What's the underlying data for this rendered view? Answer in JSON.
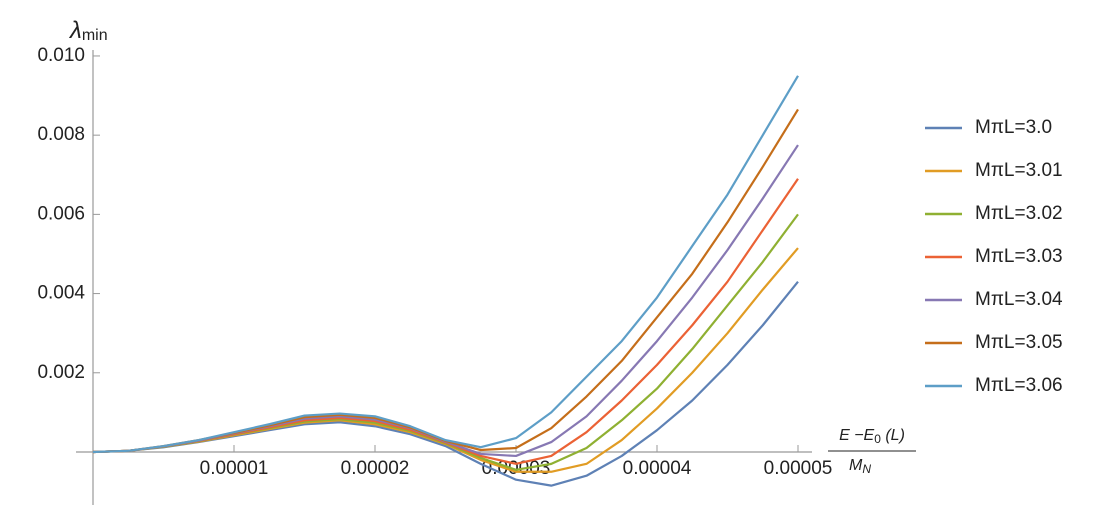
{
  "chart_data": {
    "type": "line",
    "y_label": {
      "main": "λ",
      "sub": "min"
    },
    "x_label": {
      "numerator": "E −E",
      "numerator_sub": "0",
      "numerator_tail": " (L)",
      "denominator": "M",
      "denominator_sub": "N"
    },
    "x": [
      0,
      2.5e-06,
      5e-06,
      7.5e-06,
      1e-05,
      1.25e-05,
      1.5e-05,
      1.75e-05,
      2e-05,
      2.25e-05,
      2.5e-05,
      2.75e-05,
      3e-05,
      3.25e-05,
      3.5e-05,
      3.75e-05,
      4e-05,
      4.25e-05,
      4.5e-05,
      4.75e-05,
      5e-05
    ],
    "xlim": [
      0,
      5e-05
    ],
    "xticks": [
      1e-05,
      2e-05,
      3e-05,
      4e-05,
      5e-05
    ],
    "ylim": [
      -0.0012,
      0.0101
    ],
    "yticks": [
      0.002,
      0.004,
      0.006,
      0.008,
      {
        "value": 0.01,
        "label": "0.010"
      }
    ],
    "series": [
      {
        "name": "MπL=3.0",
        "color": "#5e81b5",
        "values": [
          0,
          3e-05,
          0.00012,
          0.00025,
          0.0004,
          0.00055,
          0.0007,
          0.00075,
          0.00065,
          0.00045,
          0.00015,
          -0.0003,
          -0.0007,
          -0.00085,
          -0.0006,
          -0.0001,
          0.00055,
          0.0013,
          0.0022,
          0.0032,
          0.0043
        ]
      },
      {
        "name": "MπL=3.01",
        "color": "#e19c24",
        "values": [
          0,
          3e-05,
          0.00013,
          0.00026,
          0.00042,
          0.00058,
          0.00074,
          0.0008,
          0.0007,
          0.0005,
          0.0002,
          -0.0002,
          -0.0005,
          -0.0005,
          -0.0003,
          0.0003,
          0.0011,
          0.002,
          0.003,
          0.0041,
          0.00515
        ]
      },
      {
        "name": "MπL=3.02",
        "color": "#8fb032",
        "values": [
          0,
          3e-05,
          0.00013,
          0.00027,
          0.00044,
          0.0006,
          0.00077,
          0.00083,
          0.00074,
          0.00053,
          0.00022,
          -0.00015,
          -0.00045,
          -0.0003,
          0.0001,
          0.0008,
          0.0016,
          0.0026,
          0.0037,
          0.0048,
          0.006
        ]
      },
      {
        "name": "MπL=3.03",
        "color": "#eb6235",
        "values": [
          0,
          3e-05,
          0.00014,
          0.00028,
          0.00045,
          0.00062,
          0.0008,
          0.00086,
          0.00078,
          0.00056,
          0.00024,
          -0.0001,
          -0.0003,
          -0.0001,
          0.0005,
          0.0013,
          0.0022,
          0.0032,
          0.0043,
          0.0056,
          0.0069
        ]
      },
      {
        "name": "MπL=3.04",
        "color": "#8778b3",
        "values": [
          0,
          3e-05,
          0.00014,
          0.00029,
          0.00047,
          0.00065,
          0.00084,
          0.0009,
          0.00082,
          0.0006,
          0.00026,
          -5e-05,
          -0.0001,
          0.00025,
          0.0009,
          0.0018,
          0.0028,
          0.0039,
          0.0051,
          0.0064,
          0.00775
        ]
      },
      {
        "name": "MπL=3.05",
        "color": "#c56e1a",
        "values": [
          0,
          3e-05,
          0.00015,
          0.0003,
          0.00048,
          0.00067,
          0.00088,
          0.00094,
          0.00086,
          0.00062,
          0.00028,
          5e-05,
          0.0001,
          0.0006,
          0.0014,
          0.0023,
          0.0034,
          0.0045,
          0.0058,
          0.0072,
          0.00865
        ]
      },
      {
        "name": "MπL=3.06",
        "color": "#5d9ec7",
        "values": [
          0,
          3e-05,
          0.00015,
          0.0003,
          0.0005,
          0.0007,
          0.00092,
          0.00097,
          0.0009,
          0.00065,
          0.0003,
          0.00012,
          0.00035,
          0.001,
          0.0019,
          0.0028,
          0.0039,
          0.0052,
          0.0065,
          0.008,
          0.0095
        ]
      }
    ]
  }
}
